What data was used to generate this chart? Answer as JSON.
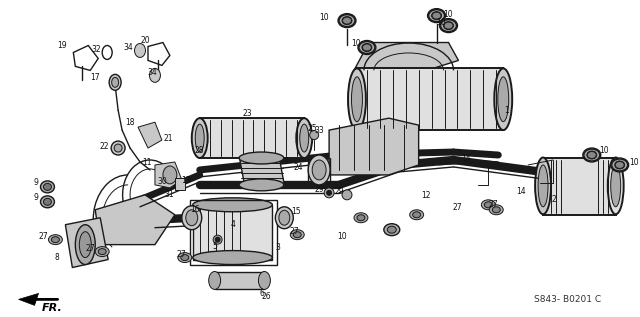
{
  "background_color": "#ffffff",
  "diagram_code": "S843- B0201 C",
  "fr_label": "FR.",
  "fig_width": 6.4,
  "fig_height": 3.17,
  "dpi": 100,
  "dark": "#1a1a1a",
  "gray_fill": "#c8c8c8",
  "gray_med": "#aaaaaa",
  "gray_light": "#e0e0e0",
  "lw_main": 1.4,
  "lw_thin": 0.7,
  "lw_med": 1.0
}
